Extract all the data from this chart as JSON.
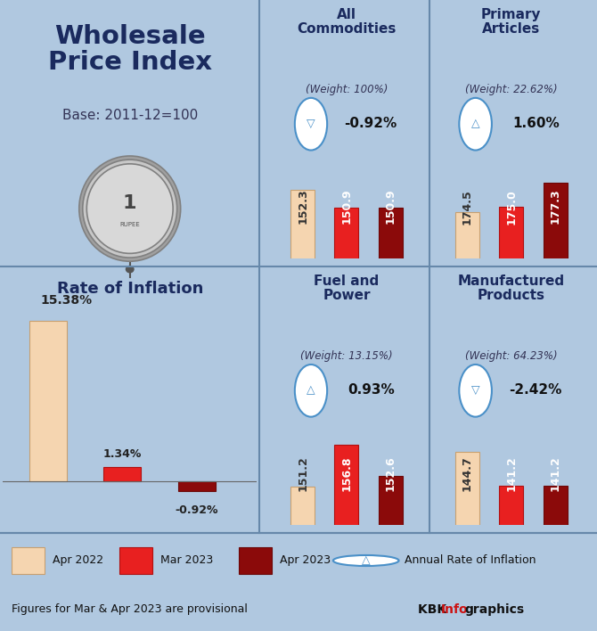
{
  "title": "Wholesale\nPrice Index",
  "subtitle": "Base: 2011-12=100",
  "bg_color": "#b0c8e0",
  "panel_bg_top": "#c8daea",
  "panel_bg_bottom": "#daeaf5",
  "inflation_title": "Rate of Inflation",
  "inflation_values": [
    15.38,
    1.34,
    -0.92
  ],
  "inflation_labels": [
    "15.38%",
    "1.34%",
    "-0.92%"
  ],
  "panels": [
    {
      "title": "All\nCommodities",
      "weight": "(Weight: 100%)",
      "arrow": "down",
      "rate": "-0.92%",
      "values": [
        152.3,
        150.9,
        150.9
      ],
      "ylim": [
        147,
        155
      ]
    },
    {
      "title": "Primary\nArticles",
      "weight": "(Weight: 22.62%)",
      "arrow": "up",
      "rate": "1.60%",
      "values": [
        174.5,
        175.0,
        177.3
      ],
      "ylim": [
        170,
        180
      ]
    },
    {
      "title": "Fuel and\nPower",
      "weight": "(Weight: 13.15%)",
      "arrow": "up",
      "rate": "0.93%",
      "values": [
        151.2,
        156.8,
        152.6
      ],
      "ylim": [
        146,
        160
      ]
    },
    {
      "title": "Manufactured\nProducts",
      "weight": "(Weight: 64.23%)",
      "arrow": "down",
      "rate": "-2.42%",
      "values": [
        144.7,
        141.2,
        141.2
      ],
      "ylim": [
        137,
        148
      ]
    }
  ],
  "bar_colors": [
    "#f5d5b0",
    "#e82020",
    "#8b0a0a"
  ],
  "bar_edge_colors": [
    "#c8a070",
    "#b01010",
    "#6b0808"
  ],
  "legend_labels": [
    "Apr 2022",
    "Mar 2023",
    "Apr 2023"
  ],
  "arrow_color": "#4a90c8",
  "note": "Figures for Mar & Apr 2023 are provisional",
  "credit_black": "KBK ",
  "credit_red": "Info",
  "credit_black2": "graphics"
}
